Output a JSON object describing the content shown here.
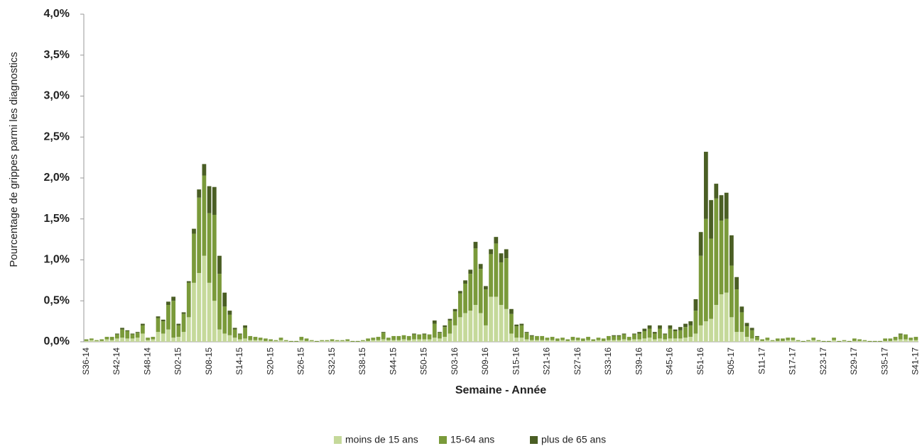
{
  "chart_data": {
    "type": "stacked_bar",
    "y_label": "Pourcentage de grippes parmi les diagnostics",
    "x_label": "Semaine - Année",
    "categories": [
      "S36-14",
      null,
      null,
      null,
      null,
      null,
      "S42-14",
      null,
      null,
      null,
      null,
      null,
      "S48-14",
      null,
      null,
      null,
      null,
      null,
      "S02-15",
      null,
      null,
      null,
      null,
      null,
      "S08-15",
      null,
      null,
      null,
      null,
      null,
      "S14-15",
      null,
      null,
      null,
      null,
      null,
      "S20-15",
      null,
      null,
      null,
      null,
      null,
      "S26-15",
      null,
      null,
      null,
      null,
      null,
      "S32-15",
      null,
      null,
      null,
      null,
      null,
      "S38-15",
      null,
      null,
      null,
      null,
      null,
      "S44-15",
      null,
      null,
      null,
      null,
      null,
      "S50-15",
      null,
      null,
      null,
      null,
      null,
      "S03-16",
      null,
      null,
      null,
      null,
      null,
      "S09-16",
      null,
      null,
      null,
      null,
      null,
      "S15-16",
      null,
      null,
      null,
      null,
      null,
      "S21-16",
      null,
      null,
      null,
      null,
      null,
      "S27-16",
      null,
      null,
      null,
      null,
      null,
      "S33-16",
      null,
      null,
      null,
      null,
      null,
      "S39-16",
      null,
      null,
      null,
      null,
      null,
      "S45-16",
      null,
      null,
      null,
      null,
      null,
      "S51-16",
      null,
      null,
      null,
      null,
      null,
      "S05-17",
      null,
      null,
      null,
      null,
      null,
      "S11-17",
      null,
      null,
      null,
      null,
      null,
      "S17-17",
      null,
      null,
      null,
      null,
      null,
      "S23-17",
      null,
      null,
      null,
      null,
      null,
      "S29-17",
      null,
      null,
      null,
      null,
      null,
      "S35-17",
      null,
      null,
      null,
      null,
      null,
      "S41-17"
    ],
    "series": [
      {
        "name": "moins de 15 ans",
        "color": "#c5d99a",
        "values": [
          0.01,
          0.02,
          0.01,
          0.01,
          0.03,
          0.02,
          0.04,
          0.05,
          0.04,
          0.04,
          0.05,
          0.1,
          0.02,
          0.03,
          0.12,
          0.1,
          0.15,
          0.05,
          0.06,
          0.12,
          0.3,
          0.72,
          0.84,
          1.05,
          0.72,
          0.5,
          0.15,
          0.1,
          0.08,
          0.05,
          0.03,
          0.04,
          0.02,
          0.02,
          0.02,
          0.01,
          0.01,
          0.01,
          0.02,
          0.01,
          0,
          0,
          0.02,
          0.01,
          0.01,
          0,
          0.01,
          0.01,
          0.01,
          0.01,
          0.01,
          0.01,
          0,
          0,
          0.01,
          0.01,
          0.02,
          0.02,
          0.03,
          0.02,
          0.02,
          0.02,
          0.03,
          0.02,
          0.03,
          0.03,
          0.03,
          0.03,
          0.05,
          0.04,
          0.06,
          0.1,
          0.2,
          0.3,
          0.35,
          0.38,
          0.45,
          0.35,
          0.2,
          0.55,
          0.55,
          0.45,
          0.4,
          0.1,
          0.05,
          0.05,
          0.03,
          0.02,
          0.02,
          0.02,
          0.02,
          0.02,
          0.01,
          0.02,
          0.01,
          0.02,
          0.02,
          0.01,
          0.02,
          0.01,
          0.02,
          0.01,
          0.02,
          0.02,
          0.02,
          0.03,
          0.02,
          0.03,
          0.03,
          0.04,
          0.05,
          0.03,
          0.04,
          0.03,
          0.04,
          0.04,
          0.04,
          0.05,
          0.06,
          0.1,
          0.2,
          0.25,
          0.28,
          0.45,
          0.58,
          0.6,
          0.3,
          0.12,
          0.12,
          0.06,
          0.04,
          0.02,
          0.01,
          0.02,
          0.01,
          0.01,
          0.01,
          0.02,
          0.02,
          0.01,
          0,
          0.01,
          0.02,
          0.01,
          0,
          0,
          0.02,
          0,
          0.01,
          0,
          0.01,
          0.01,
          0.01,
          0,
          0,
          0,
          0.01,
          0.01,
          0.02,
          0.03,
          0.03,
          0.02,
          0.02
        ]
      },
      {
        "name": "15-64 ans",
        "color": "#7a9a3a",
        "values": [
          0.02,
          0.02,
          0.01,
          0.02,
          0.03,
          0.04,
          0.05,
          0.1,
          0.09,
          0.05,
          0.06,
          0.1,
          0.03,
          0.03,
          0.17,
          0.15,
          0.3,
          0.45,
          0.14,
          0.22,
          0.42,
          0.6,
          0.92,
          0.98,
          0.85,
          1.05,
          0.68,
          0.33,
          0.25,
          0.1,
          0.06,
          0.13,
          0.05,
          0.04,
          0.03,
          0.03,
          0.02,
          0.01,
          0.03,
          0.01,
          0.01,
          0.01,
          0.04,
          0.03,
          0.01,
          0.01,
          0.01,
          0.01,
          0.02,
          0.01,
          0.01,
          0.02,
          0.01,
          0.01,
          0.01,
          0.03,
          0.03,
          0.04,
          0.08,
          0.03,
          0.05,
          0.05,
          0.05,
          0.05,
          0.06,
          0.06,
          0.06,
          0.06,
          0.17,
          0.07,
          0.12,
          0.16,
          0.17,
          0.29,
          0.36,
          0.45,
          0.69,
          0.54,
          0.44,
          0.52,
          0.65,
          0.52,
          0.62,
          0.24,
          0.14,
          0.15,
          0.08,
          0.05,
          0.05,
          0.05,
          0.03,
          0.04,
          0.03,
          0.03,
          0.02,
          0.04,
          0.03,
          0.03,
          0.04,
          0.02,
          0.03,
          0.03,
          0.05,
          0.05,
          0.05,
          0.06,
          0.04,
          0.06,
          0.07,
          0.09,
          0.11,
          0.07,
          0.12,
          0.06,
          0.12,
          0.09,
          0.1,
          0.13,
          0.14,
          0.28,
          0.85,
          1.25,
          0.98,
          1.3,
          0.9,
          0.9,
          0.63,
          0.52,
          0.24,
          0.13,
          0.1,
          0.04,
          0.02,
          0.03,
          0.01,
          0.03,
          0.03,
          0.03,
          0.03,
          0.01,
          0.01,
          0.01,
          0.03,
          0.01,
          0.01,
          0.01,
          0.03,
          0.01,
          0.01,
          0.01,
          0.03,
          0.02,
          0.01,
          0.01,
          0.01,
          0.01,
          0.03,
          0.03,
          0.04,
          0.06,
          0.06,
          0.03,
          0.04
        ]
      },
      {
        "name": "plus de 65 ans",
        "color": "#4a5e24",
        "values": [
          0,
          0,
          0,
          0,
          0,
          0,
          0.01,
          0.02,
          0.01,
          0.01,
          0.01,
          0.02,
          0,
          0,
          0.02,
          0.02,
          0.04,
          0.05,
          0.02,
          0.02,
          0.02,
          0.06,
          0.1,
          0.14,
          0.33,
          0.34,
          0.22,
          0.17,
          0.05,
          0.02,
          0.01,
          0.03,
          0,
          0,
          0,
          0,
          0,
          0,
          0,
          0,
          0,
          0,
          0,
          0,
          0,
          0,
          0,
          0,
          0,
          0,
          0,
          0,
          0,
          0,
          0,
          0,
          0,
          0,
          0.01,
          0,
          0,
          0,
          0,
          0,
          0.01,
          0,
          0.01,
          0,
          0.04,
          0.01,
          0.02,
          0.02,
          0.03,
          0.03,
          0.04,
          0.05,
          0.08,
          0.06,
          0.04,
          0.06,
          0.08,
          0.11,
          0.11,
          0.06,
          0.02,
          0.02,
          0.01,
          0.01,
          0,
          0,
          0,
          0,
          0,
          0,
          0,
          0,
          0,
          0,
          0,
          0,
          0,
          0,
          0,
          0.01,
          0.01,
          0.01,
          0,
          0.01,
          0.02,
          0.03,
          0.04,
          0.02,
          0.04,
          0.01,
          0.04,
          0.02,
          0.04,
          0.04,
          0.05,
          0.14,
          0.29,
          0.82,
          0.47,
          0.18,
          0.31,
          0.32,
          0.37,
          0.15,
          0.07,
          0.04,
          0.03,
          0.01,
          0,
          0,
          0,
          0,
          0,
          0,
          0,
          0,
          0,
          0,
          0,
          0,
          0,
          0,
          0,
          0,
          0,
          0,
          0,
          0,
          0,
          0,
          0,
          0,
          0,
          0,
          0,
          0.01,
          0,
          0,
          0
        ]
      }
    ],
    "ylim": [
      0,
      4
    ],
    "yticks": [
      {
        "value": 0,
        "label": "0,0%"
      },
      {
        "value": 0.5,
        "label": "0,5%"
      },
      {
        "value": 1,
        "label": "1,0%"
      },
      {
        "value": 1.5,
        "label": "1,5%"
      },
      {
        "value": 2,
        "label": "2,0%"
      },
      {
        "value": 2.5,
        "label": "2,5%"
      },
      {
        "value": 3,
        "label": "3,0%"
      },
      {
        "value": 3.5,
        "label": "3,5%"
      },
      {
        "value": 4,
        "label": "4,0%"
      }
    ],
    "grid": false,
    "legend": "bottom"
  }
}
